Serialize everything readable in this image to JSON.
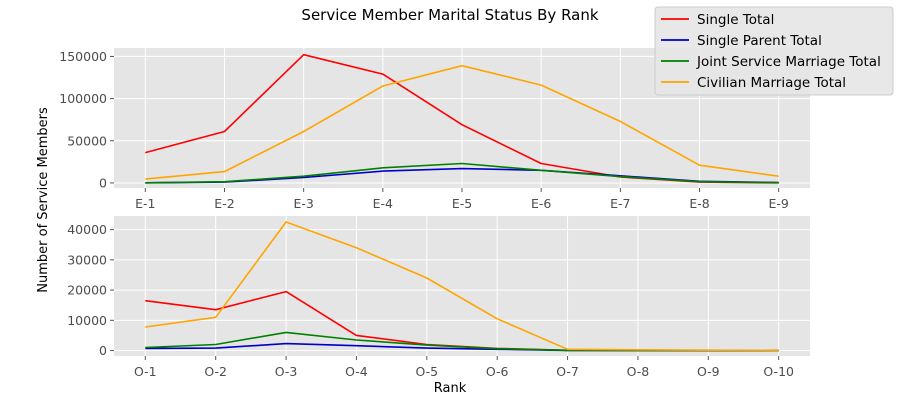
{
  "chart_data": {
    "type": "line",
    "title": "Service Member Marital Status By Rank",
    "xlabel": "Rank",
    "ylabel": "Number of Service Members",
    "legend_placement": "top-right",
    "grid": true,
    "legend": [
      {
        "name": "Single Total",
        "color": "#ff0000"
      },
      {
        "name": "Single Parent Total",
        "color": "#0000cc"
      },
      {
        "name": "Joint Service Marriage Total",
        "color": "#008000"
      },
      {
        "name": "Civilian Marriage Total",
        "color": "#ffa500"
      }
    ],
    "panels": [
      {
        "categories": [
          "E-1",
          "E-2",
          "E-3",
          "E-4",
          "E-5",
          "E-6",
          "E-7",
          "E-8",
          "E-9"
        ],
        "ylim": [
          -6000,
          160000
        ],
        "yticks": [
          0,
          50000,
          100000,
          150000
        ],
        "series": [
          {
            "name": "Single Total",
            "values": [
              36000,
              61000,
              152000,
              129000,
              69000,
              23000,
              7000,
              1000,
              200
            ]
          },
          {
            "name": "Single Parent Total",
            "values": [
              200,
              1000,
              6500,
              14000,
              17000,
              15000,
              8500,
              2000,
              500
            ]
          },
          {
            "name": "Joint Service Marriage Total",
            "values": [
              200,
              1500,
              8000,
              18000,
              23000,
              15000,
              7500,
              1500,
              300
            ]
          },
          {
            "name": "Civilian Marriage Total",
            "values": [
              4500,
              13500,
              61000,
              115000,
              139000,
              116000,
              73000,
              21000,
              8000
            ]
          }
        ]
      },
      {
        "categories": [
          "O-1",
          "O-2",
          "O-3",
          "O-4",
          "O-5",
          "O-6",
          "O-7",
          "O-8",
          "O-9",
          "O-10"
        ],
        "ylim": [
          -1800,
          44500
        ],
        "yticks": [
          0,
          10000,
          20000,
          30000,
          40000
        ],
        "series": [
          {
            "name": "Single Total",
            "values": [
              16500,
              13500,
              19500,
              5000,
              2000,
              700,
              100,
              50,
              20,
              10
            ]
          },
          {
            "name": "Single Parent Total",
            "values": [
              700,
              800,
              2300,
              1600,
              800,
              400,
              50,
              20,
              10,
              5
            ]
          },
          {
            "name": "Joint Service Marriage Total",
            "values": [
              1000,
              2000,
              6000,
              3500,
              1800,
              600,
              80,
              40,
              20,
              10
            ]
          },
          {
            "name": "Civilian Marriage Total",
            "values": [
              7800,
              11000,
              42500,
              34000,
              24000,
              10500,
              400,
              250,
              120,
              60
            ]
          }
        ]
      }
    ]
  }
}
